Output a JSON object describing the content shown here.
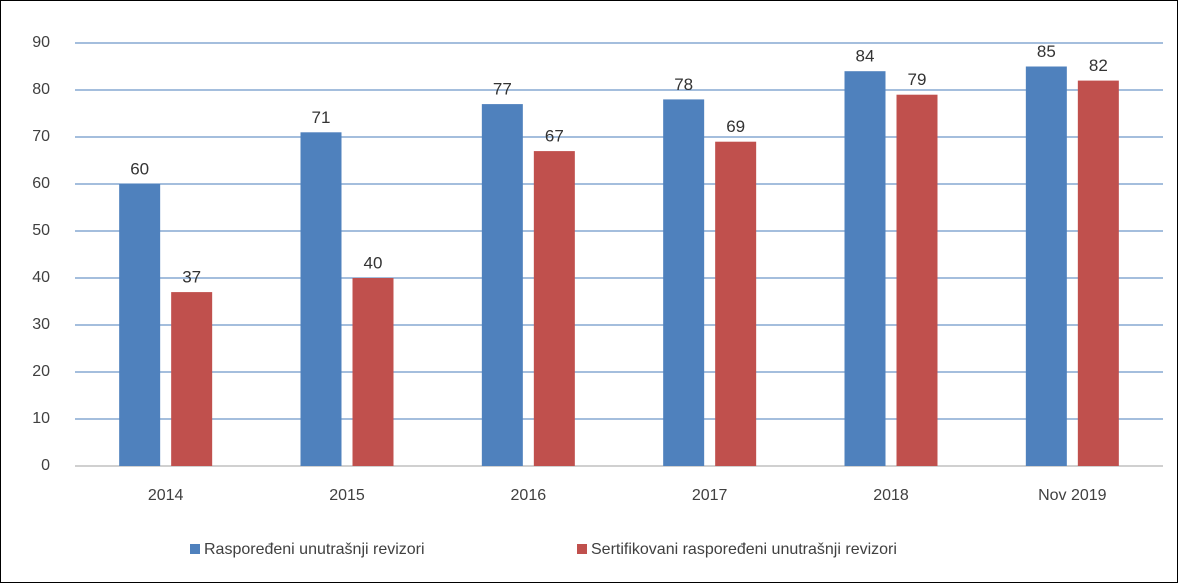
{
  "chart_data": {
    "type": "bar",
    "categories": [
      "2014",
      "2015",
      "2016",
      "2017",
      "2018",
      "Nov 2019"
    ],
    "series": [
      {
        "name": "Raspoređeni unutrašnji revizori",
        "color": "#4f81bd",
        "values": [
          60,
          71,
          77,
          78,
          84,
          85
        ]
      },
      {
        "name": "Sertifikovani raspoređeni unutrašnji revizori",
        "color": "#c0504d",
        "values": [
          37,
          40,
          67,
          69,
          79,
          82
        ]
      }
    ],
    "ylim": [
      0,
      90
    ],
    "yticks": [
      0,
      10,
      20,
      30,
      40,
      50,
      60,
      70,
      80,
      90
    ],
    "grid": true,
    "legend": "bottom"
  }
}
